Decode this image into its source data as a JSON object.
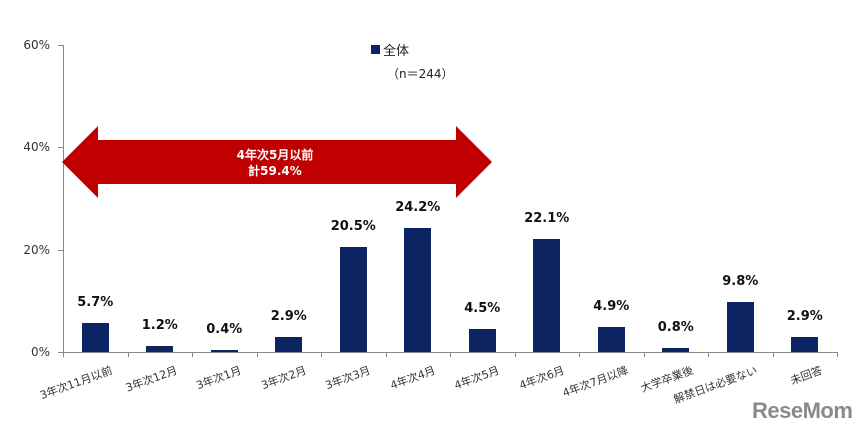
{
  "chart_data": {
    "type": "bar",
    "title": "",
    "xlabel": "",
    "ylabel": "",
    "ylim": [
      0,
      60
    ],
    "yticks": [
      "0%",
      "20%",
      "40%",
      "60%"
    ],
    "grid": false,
    "legend": {
      "position": "top-center",
      "entries": [
        "全体"
      ],
      "note": "（n＝244）"
    },
    "categories": [
      "3年次11月以前",
      "3年次12月",
      "3年次1月",
      "3年次2月",
      "3年次3月",
      "4年次4月",
      "4年次5月",
      "4年次6月",
      "4年次7月以降",
      "大学卒業後",
      "解禁日は必要ない",
      "未回答"
    ],
    "series": [
      {
        "name": "全体",
        "color": "#0c2461",
        "values": [
          5.7,
          1.2,
          0.4,
          2.9,
          20.5,
          24.2,
          4.5,
          22.1,
          4.9,
          0.8,
          9.8,
          2.9
        ]
      }
    ],
    "value_labels": [
      "5.7%",
      "1.2%",
      "0.4%",
      "2.9%",
      "20.5%",
      "24.2%",
      "4.5%",
      "22.1%",
      "4.9%",
      "0.8%",
      "9.8%",
      "2.9%"
    ],
    "annotations": [
      {
        "type": "double-arrow",
        "color": "#c00000",
        "span": [
          "3年次11月以前",
          "4年次5月"
        ],
        "text": [
          "4年次5月以前",
          "計59.4%"
        ]
      }
    ]
  },
  "legend": {
    "label": "全体",
    "note": "（n＝244）"
  },
  "arrow": {
    "line1": "4年次5月以前",
    "line2": "計59.4%"
  },
  "watermark": "ReseMom"
}
